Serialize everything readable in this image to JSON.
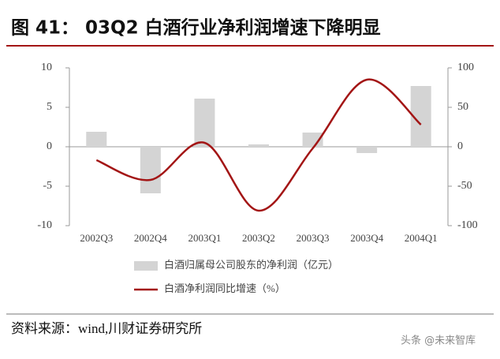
{
  "title": "图 41： 03Q2 白酒行业净利润增速下降明显",
  "source": "资料来源：wind,川财证券研究所",
  "watermark": "头条 @未来智库",
  "chart_data": {
    "type": "combo",
    "categories": [
      "2002Q3",
      "2002Q4",
      "2003Q1",
      "2003Q2",
      "2003Q3",
      "2003Q4",
      "2004Q1"
    ],
    "series": [
      {
        "name": "白酒归属母公司股东的净利润（亿元）",
        "type": "bar",
        "color": "#d4d4d4",
        "values": [
          1.9,
          -5.9,
          6.1,
          0.3,
          1.8,
          -0.8,
          7.7
        ]
      },
      {
        "name": "白酒净利润同比增速（%）",
        "type": "line",
        "axis": "y2",
        "color": "#a31515",
        "values": [
          -17,
          -42,
          5,
          -81,
          -2,
          85,
          28
        ]
      }
    ],
    "ylim": [
      -10,
      10
    ],
    "yticks": [
      -10,
      -5,
      0,
      5,
      10
    ],
    "y2lim": [
      -100,
      100
    ],
    "y2ticks": [
      -100,
      -50,
      0,
      50,
      100
    ],
    "grid": false
  }
}
